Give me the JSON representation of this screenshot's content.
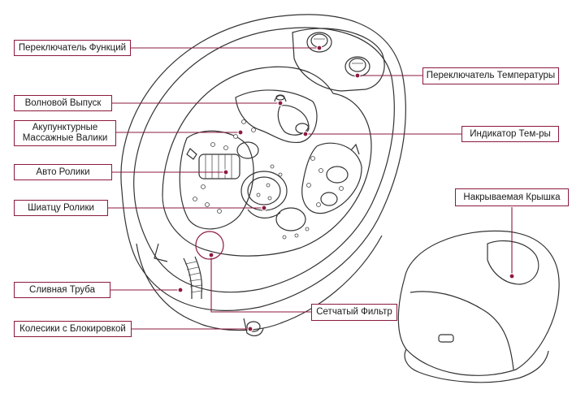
{
  "labels": {
    "function_switch": "Переключатель Функций",
    "temperature_switch": "Переключатель Температуры",
    "wave_outlet": "Волновой Выпуск",
    "acupuncture_rollers_line1": "Акупунктурные",
    "acupuncture_rollers_line2": "Массажные Валики",
    "temperature_indicator": "Индикатор Тем-ры",
    "auto_rollers": "Авто Ролики",
    "covered_lid": "Накрываемая Крышка",
    "shiatsu_rollers": "Шиатцу Ролики",
    "drain_pipe": "Сливная Труба",
    "mesh_filter": "Сетчатый Фильтр",
    "locking_wheels": "Колесики с Блокировкой"
  },
  "colors": {
    "callout_border": "#8b1a3c",
    "callout_dot": "#8b1a3c",
    "drawing_line": "#333333"
  }
}
